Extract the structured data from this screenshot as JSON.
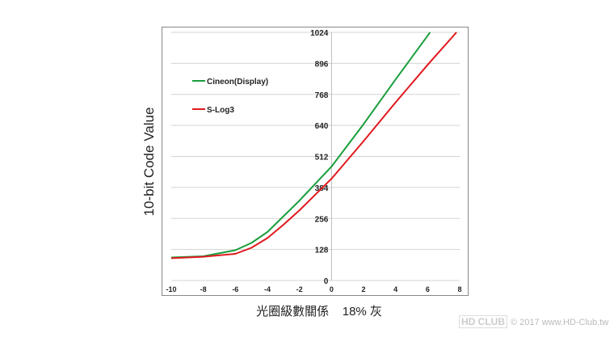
{
  "chart_data": {
    "type": "line",
    "xlabel": "光圈級數關係    18% 灰",
    "ylabel": "10-bit Code Value",
    "xlim": [
      -10,
      8
    ],
    "ylim": [
      0,
      1024
    ],
    "xticks": [
      -10,
      -8,
      -6,
      -4,
      -2,
      0,
      2,
      4,
      6,
      8
    ],
    "yticks": [
      0,
      128,
      256,
      384,
      512,
      640,
      768,
      896,
      1024
    ],
    "grid": "horizontal",
    "legend": "upper-left",
    "series": [
      {
        "name": "Cineon(Display)",
        "color": "#1a9e3c",
        "x": [
          -10,
          -8,
          -6,
          -5,
          -4,
          -3,
          -2,
          -1,
          0,
          2,
          4,
          6,
          6.15
        ],
        "y": [
          95,
          100,
          125,
          155,
          200,
          265,
          330,
          400,
          470,
          645,
          830,
          1010,
          1024
        ]
      },
      {
        "name": "S-Log3",
        "color": "#e0191f",
        "x": [
          -10,
          -8,
          -6,
          -5,
          -4,
          -3,
          -2,
          -1,
          0,
          2,
          4,
          6,
          7.8
        ],
        "y": [
          92,
          98,
          110,
          135,
          175,
          230,
          290,
          355,
          420,
          575,
          735,
          890,
          1024
        ]
      }
    ]
  },
  "watermark": {
    "logo": "HD CLUB",
    "text": "© 2017 www.HD-Club.tw"
  }
}
